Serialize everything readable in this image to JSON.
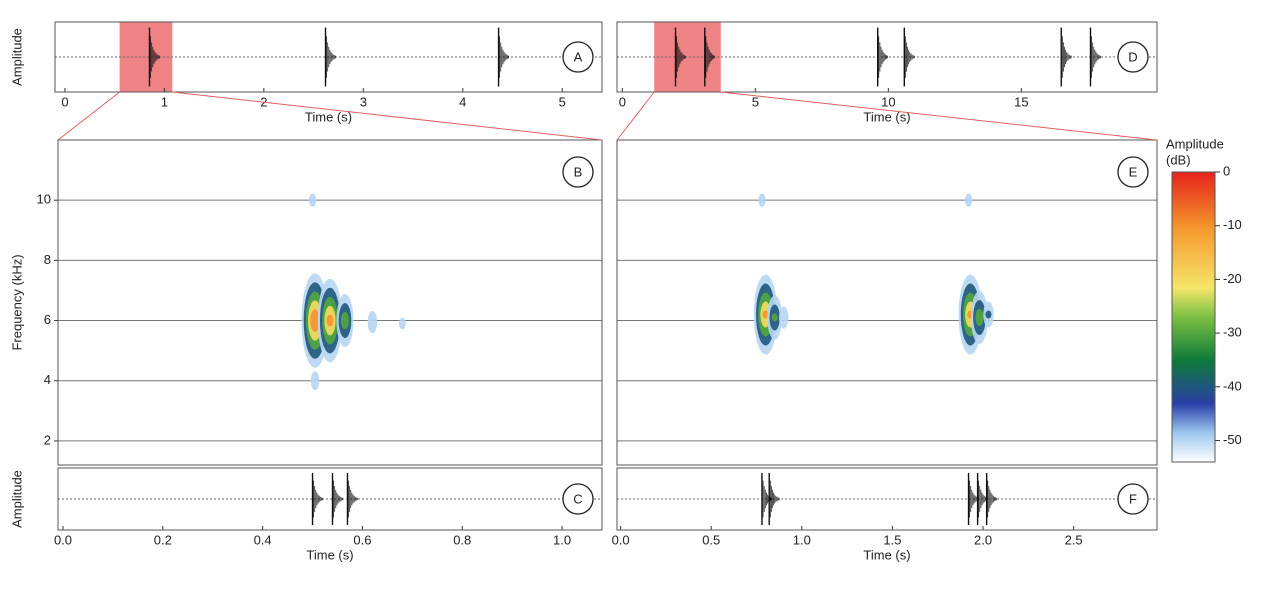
{
  "chart_data": [
    {
      "type": "waveform",
      "label": "A",
      "ylabel": "Amplitude",
      "xlabel": "Time (s)",
      "xlim": [
        -0.1,
        5.4
      ],
      "xticks": [
        0,
        1,
        2,
        3,
        4,
        5
      ],
      "selection": [
        0.55,
        1.08
      ],
      "events": [
        0.85,
        2.62,
        4.36
      ]
    },
    {
      "type": "spectrogram",
      "label": "B",
      "ylabel": "Frequency (kHz)",
      "xlim": [
        -0.01,
        1.08
      ],
      "ylim": [
        1.2,
        12
      ],
      "yticks": [
        2,
        4,
        6,
        8,
        10
      ],
      "grid": true,
      "show_ytick_labels": true,
      "notes": [
        {
          "t": 0.505,
          "f": 6,
          "db": -2
        },
        {
          "t": 0.535,
          "f": 6,
          "db": -8
        },
        {
          "t": 0.565,
          "f": 6,
          "db": -25
        },
        {
          "t": 0.62,
          "f": 5.95,
          "db": -42
        },
        {
          "t": 0.68,
          "f": 5.9,
          "db": -48
        },
        {
          "t": 0.5,
          "f": 10,
          "db": -47
        },
        {
          "t": 0.505,
          "f": 4,
          "db": -44
        }
      ]
    },
    {
      "type": "waveform",
      "label": "C",
      "ylabel": "Amplitude",
      "xlabel": "Time (s)",
      "xlim": [
        -0.01,
        1.08
      ],
      "xticks": [
        {
          "value": 0,
          "label": "0.0"
        },
        0.2,
        0.4,
        0.6,
        0.8,
        {
          "value": 1,
          "label": "1.0"
        }
      ],
      "events": [
        0.5,
        0.54,
        0.57
      ]
    },
    {
      "type": "waveform",
      "label": "D",
      "xlabel": "Time (s)",
      "xlim": [
        -0.2,
        20.1
      ],
      "xticks": [
        0,
        5,
        10,
        15
      ],
      "selection": [
        1.2,
        3.7
      ],
      "events": [
        2,
        3.1,
        9.6,
        10.6,
        16.5,
        17.6
      ]
    },
    {
      "type": "spectrogram",
      "label": "E",
      "xlim": [
        -0.02,
        2.96
      ],
      "ylim": [
        1.2,
        12
      ],
      "yticks": [
        2,
        4,
        6,
        8,
        10
      ],
      "grid": true,
      "show_ytick_labels": false,
      "notes": [
        {
          "t": 0.8,
          "f": 6.2,
          "db": -10
        },
        {
          "t": 0.85,
          "f": 6.1,
          "db": -30
        },
        {
          "t": 0.9,
          "f": 6.1,
          "db": -42
        },
        {
          "t": 1.93,
          "f": 6.2,
          "db": -10
        },
        {
          "t": 1.98,
          "f": 6.1,
          "db": -25
        },
        {
          "t": 2.03,
          "f": 6.2,
          "db": -40
        },
        {
          "t": 0.78,
          "f": 10,
          "db": -47
        },
        {
          "t": 1.92,
          "f": 10,
          "db": -47
        }
      ]
    },
    {
      "type": "waveform",
      "label": "F",
      "xlabel": "Time (s)",
      "xlim": [
        -0.02,
        2.96
      ],
      "xticks": [
        {
          "value": 0,
          "label": "0.0"
        },
        0.5,
        {
          "value": 1,
          "label": "1.0"
        },
        1.5,
        {
          "value": 2,
          "label": "2.0"
        },
        2.5
      ],
      "events": [
        0.78,
        0.82,
        1.92,
        1.97,
        2.02
      ]
    },
    {
      "type": "colorbar",
      "title": [
        "Amplitude",
        "(dB)"
      ],
      "clim": [
        -54,
        0
      ],
      "ticks": [
        0,
        -10,
        -20,
        -30,
        -40,
        -50
      ]
    }
  ]
}
